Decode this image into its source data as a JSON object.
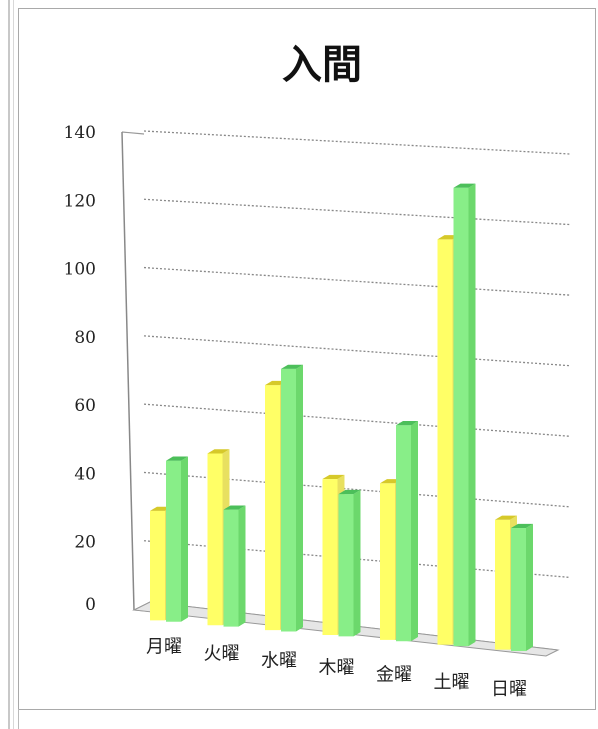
{
  "chart_data": {
    "type": "bar",
    "title": "入間",
    "xlabel": "",
    "ylabel": "",
    "ylim": [
      0,
      140
    ],
    "yticks": [
      "0",
      "20",
      "40",
      "60",
      "80",
      "100",
      "120",
      "140"
    ],
    "categories": [
      "月曜",
      "火曜",
      "水曜",
      "木曜",
      "金曜",
      "土曜",
      "日曜"
    ],
    "series": [
      {
        "values": [
          32,
          50,
          71,
          45,
          45,
          116,
          37
        ],
        "color": "#ffff66"
      },
      {
        "values": [
          47,
          34,
          76,
          41,
          62,
          131,
          35
        ],
        "color": "#88ee88"
      }
    ],
    "grid": true,
    "legend": "none"
  }
}
